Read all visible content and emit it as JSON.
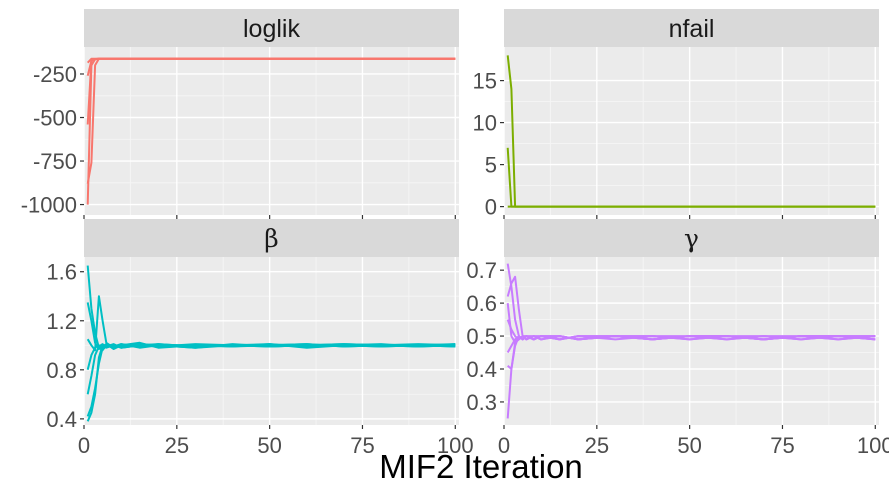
{
  "xlabel": "MIF2 Iteration",
  "colors": {
    "panel_bg": "#ebebeb",
    "grid_major": "#ffffff",
    "grid_minor": "#f5f5f5",
    "strip_bg": "#d9d9d9",
    "axis_text": "#4d4d4d",
    "strip_text": "#1a1a1a"
  },
  "chart_data": [
    {
      "type": "line",
      "title": "loglik",
      "color": "#f8766d",
      "xlim": [
        0,
        101
      ],
      "ylim": [
        -1060,
        -95
      ],
      "xticks": [
        0,
        25,
        50,
        75,
        100
      ],
      "yticks": [
        -1000,
        -750,
        -500,
        -250
      ],
      "ytick_labels": [
        "-1000",
        "-750",
        "-500",
        "-250"
      ],
      "show_x_tick_labels": false,
      "series": [
        {
          "x": [
            1,
            2,
            3,
            4,
            100
          ],
          "y": [
            -1000,
            -200,
            -165,
            -162,
            -162
          ]
        },
        {
          "x": [
            1,
            2,
            3,
            4,
            100
          ],
          "y": [
            -880,
            -760,
            -200,
            -163,
            -163
          ]
        },
        {
          "x": [
            1,
            2,
            3,
            4,
            100
          ],
          "y": [
            -540,
            -170,
            -165,
            -162,
            -162
          ]
        },
        {
          "x": [
            1,
            2,
            3,
            4,
            100
          ],
          "y": [
            -260,
            -175,
            -164,
            -162,
            -162
          ]
        },
        {
          "x": [
            1,
            2,
            3,
            4,
            100
          ],
          "y": [
            -185,
            -163,
            -162,
            -162,
            -162
          ]
        }
      ]
    },
    {
      "type": "line",
      "title": "nfail",
      "color": "#7cae00",
      "xlim": [
        0,
        101
      ],
      "ylim": [
        -1,
        19
      ],
      "xticks": [
        0,
        25,
        50,
        75,
        100
      ],
      "yticks": [
        0,
        5,
        10,
        15
      ],
      "ytick_labels": [
        "0",
        "5",
        "10",
        "15"
      ],
      "show_x_tick_labels": false,
      "series": [
        {
          "x": [
            1,
            2,
            3,
            100
          ],
          "y": [
            18,
            14,
            0,
            0
          ]
        },
        {
          "x": [
            1,
            2,
            3,
            100
          ],
          "y": [
            7,
            0,
            0,
            0
          ]
        },
        {
          "x": [
            1,
            2,
            100
          ],
          "y": [
            0,
            0,
            0
          ]
        }
      ]
    },
    {
      "type": "line",
      "title": "β",
      "color": "#00bfc4",
      "xlim": [
        0,
        101
      ],
      "ylim": [
        0.35,
        1.72
      ],
      "xticks": [
        0,
        25,
        50,
        75,
        100
      ],
      "yticks": [
        0.4,
        0.8,
        1.2,
        1.6
      ],
      "ytick_labels": [
        "0.4",
        "0.8",
        "1.2",
        "1.6"
      ],
      "xtick_labels": [
        "0",
        "25",
        "50",
        "75",
        "100"
      ],
      "show_x_tick_labels": true,
      "series": [
        {
          "x": [
            1,
            2,
            3,
            4,
            5,
            6,
            8,
            10,
            15,
            20,
            30,
            40,
            50,
            60,
            70,
            80,
            90,
            100
          ],
          "y": [
            1.65,
            1.3,
            1.1,
            0.98,
            0.96,
            1.0,
            0.98,
            1.01,
            0.99,
            1.0,
            0.98,
            1.01,
            0.99,
            1.0,
            1.0,
            0.99,
            1.0,
            1.01
          ]
        },
        {
          "x": [
            1,
            2,
            3,
            4,
            5,
            6,
            8,
            10,
            15,
            20,
            30,
            40,
            50,
            60,
            70,
            80,
            90,
            100
          ],
          "y": [
            1.35,
            1.2,
            1.02,
            0.97,
            0.99,
            1.01,
            0.97,
            1.0,
            1.02,
            0.98,
            1.0,
            0.99,
            1.01,
            0.98,
            1.0,
            1.01,
            0.99,
            1.0
          ]
        },
        {
          "x": [
            1,
            2,
            3,
            4,
            5,
            6,
            8,
            10,
            15,
            20,
            30,
            40,
            50,
            60,
            70,
            80,
            90,
            100
          ],
          "y": [
            1.05,
            1.0,
            0.96,
            1.4,
            1.2,
            1.02,
            0.98,
            1.0,
            0.99,
            1.01,
            0.99,
            1.0,
            1.0,
            1.01,
            0.99,
            1.0,
            1.01,
            1.0
          ]
        },
        {
          "x": [
            1,
            2,
            3,
            4,
            5,
            6,
            8,
            10,
            15,
            20,
            30,
            40,
            50,
            60,
            70,
            80,
            90,
            100
          ],
          "y": [
            0.8,
            0.92,
            0.98,
            1.0,
            0.97,
            0.99,
            1.01,
            0.98,
            1.0,
            0.99,
            1.01,
            1.0,
            0.99,
            1.0,
            1.01,
            1.0,
            0.99,
            1.01
          ]
        },
        {
          "x": [
            1,
            2,
            3,
            4,
            5,
            6,
            8,
            10,
            15,
            20,
            30,
            40,
            50,
            60,
            70,
            80,
            90,
            100
          ],
          "y": [
            0.6,
            0.75,
            0.92,
            0.99,
            1.01,
            0.98,
            1.0,
            0.99,
            1.01,
            1.0,
            0.98,
            1.0,
            1.01,
            0.99,
            1.0,
            0.99,
            1.0,
            0.99
          ]
        },
        {
          "x": [
            1,
            2,
            3,
            4,
            5,
            6,
            8,
            10,
            15,
            20,
            30,
            40,
            50,
            60,
            70,
            80,
            90,
            100
          ],
          "y": [
            0.42,
            0.5,
            0.65,
            0.85,
            0.98,
            1.0,
            0.99,
            1.01,
            0.98,
            1.0,
            1.0,
            0.99,
            1.0,
            1.01,
            0.99,
            1.0,
            1.0,
            0.99
          ]
        },
        {
          "x": [
            1,
            2,
            3,
            4,
            5,
            6,
            8,
            10,
            15,
            20,
            30,
            40,
            50,
            60,
            70,
            80,
            90,
            100
          ],
          "y": [
            0.38,
            0.45,
            0.6,
            0.9,
            1.0,
            0.99,
            1.0,
            0.98,
            1.0,
            1.01,
            0.99,
            1.0,
            0.99,
            1.0,
            1.01,
            1.0,
            0.99,
            1.0
          ]
        }
      ]
    },
    {
      "type": "line",
      "title": "γ",
      "color": "#c77cff",
      "xlim": [
        0,
        101
      ],
      "ylim": [
        0.23,
        0.74
      ],
      "xticks": [
        0,
        25,
        50,
        75,
        100
      ],
      "yticks": [
        0.3,
        0.4,
        0.5,
        0.6,
        0.7
      ],
      "ytick_labels": [
        "0.3",
        "0.4",
        "0.5",
        "0.6",
        "0.7"
      ],
      "xtick_labels": [
        "0",
        "25",
        "50",
        "75",
        "100"
      ],
      "show_x_tick_labels": true,
      "series": [
        {
          "x": [
            1,
            2,
            3,
            4,
            5,
            6,
            8,
            10,
            15,
            20,
            30,
            40,
            50,
            60,
            70,
            80,
            90,
            100
          ],
          "y": [
            0.72,
            0.65,
            0.55,
            0.5,
            0.49,
            0.5,
            0.49,
            0.5,
            0.49,
            0.5,
            0.49,
            0.5,
            0.5,
            0.49,
            0.5,
            0.5,
            0.49,
            0.5
          ]
        },
        {
          "x": [
            1,
            2,
            3,
            4,
            5,
            6,
            8,
            10,
            15,
            20,
            30,
            40,
            50,
            60,
            70,
            80,
            90,
            100
          ],
          "y": [
            0.62,
            0.66,
            0.68,
            0.58,
            0.5,
            0.49,
            0.5,
            0.49,
            0.5,
            0.49,
            0.5,
            0.49,
            0.5,
            0.5,
            0.49,
            0.5,
            0.5,
            0.49
          ]
        },
        {
          "x": [
            1,
            2,
            3,
            4,
            5,
            6,
            8,
            10,
            15,
            20,
            30,
            40,
            50,
            60,
            70,
            80,
            90,
            100
          ],
          "y": [
            0.55,
            0.52,
            0.5,
            0.49,
            0.5,
            0.49,
            0.5,
            0.5,
            0.49,
            0.5,
            0.5,
            0.49,
            0.5,
            0.49,
            0.5,
            0.49,
            0.5,
            0.5
          ]
        },
        {
          "x": [
            1,
            2,
            3,
            4,
            5,
            6,
            8,
            10,
            15,
            20,
            30,
            40,
            50,
            60,
            70,
            80,
            90,
            100
          ],
          "y": [
            0.45,
            0.47,
            0.49,
            0.5,
            0.49,
            0.5,
            0.49,
            0.5,
            0.5,
            0.49,
            0.5,
            0.49,
            0.5,
            0.5,
            0.49,
            0.5,
            0.49,
            0.5
          ]
        },
        {
          "x": [
            1,
            2,
            3,
            4,
            5,
            6,
            8,
            10,
            15,
            20,
            30,
            40,
            50,
            60,
            70,
            80,
            90,
            100
          ],
          "y": [
            0.41,
            0.4,
            0.47,
            0.5,
            0.49,
            0.5,
            0.5,
            0.49,
            0.5,
            0.49,
            0.5,
            0.5,
            0.49,
            0.5,
            0.5,
            0.49,
            0.5,
            0.49
          ]
        },
        {
          "x": [
            1,
            2,
            3,
            4,
            5,
            6,
            8,
            10,
            15,
            20,
            30,
            40,
            50,
            60,
            70,
            80,
            90,
            100
          ],
          "y": [
            0.25,
            0.4,
            0.48,
            0.5,
            0.49,
            0.5,
            0.49,
            0.5,
            0.49,
            0.5,
            0.5,
            0.49,
            0.5,
            0.5,
            0.49,
            0.5,
            0.5,
            0.5
          ]
        },
        {
          "x": [
            1,
            2,
            3,
            4,
            5,
            6,
            8,
            10,
            15,
            20,
            30,
            40,
            50,
            60,
            70,
            80,
            90,
            100
          ],
          "y": [
            0.6,
            0.5,
            0.48,
            0.49,
            0.5,
            0.5,
            0.49,
            0.5,
            0.5,
            0.49,
            0.5,
            0.5,
            0.49,
            0.5,
            0.49,
            0.5,
            0.5,
            0.49
          ]
        }
      ]
    }
  ]
}
